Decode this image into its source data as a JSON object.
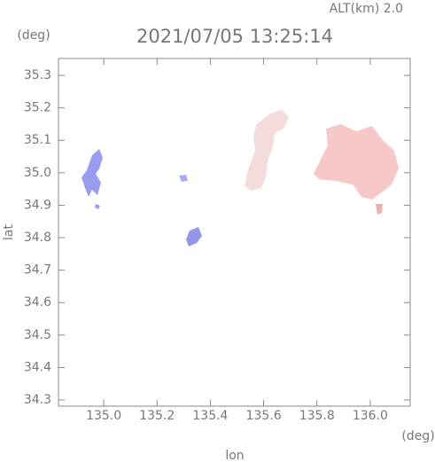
{
  "chart_data": {
    "type": "map",
    "subtitle": "ALT(km)  2.0",
    "title": "2021/07/05 13:25:14",
    "y_unit": "(deg)",
    "x_unit": "(deg)",
    "x_label": "lon",
    "y_label": "lat",
    "xlim": [
      134.83,
      136.15
    ],
    "ylim": [
      34.281,
      35.352
    ],
    "xticks": [
      {
        "value": 135.0,
        "label": "135.0"
      },
      135.2,
      135.4,
      135.6,
      135.8,
      {
        "value": 136.0,
        "label": "136.0"
      }
    ],
    "yticks": [
      34.3,
      34.4,
      34.5,
      34.6,
      34.7,
      34.8,
      34.9,
      {
        "value": 35.0,
        "label": "35.0"
      },
      35.1,
      35.2,
      35.3
    ]
  }
}
